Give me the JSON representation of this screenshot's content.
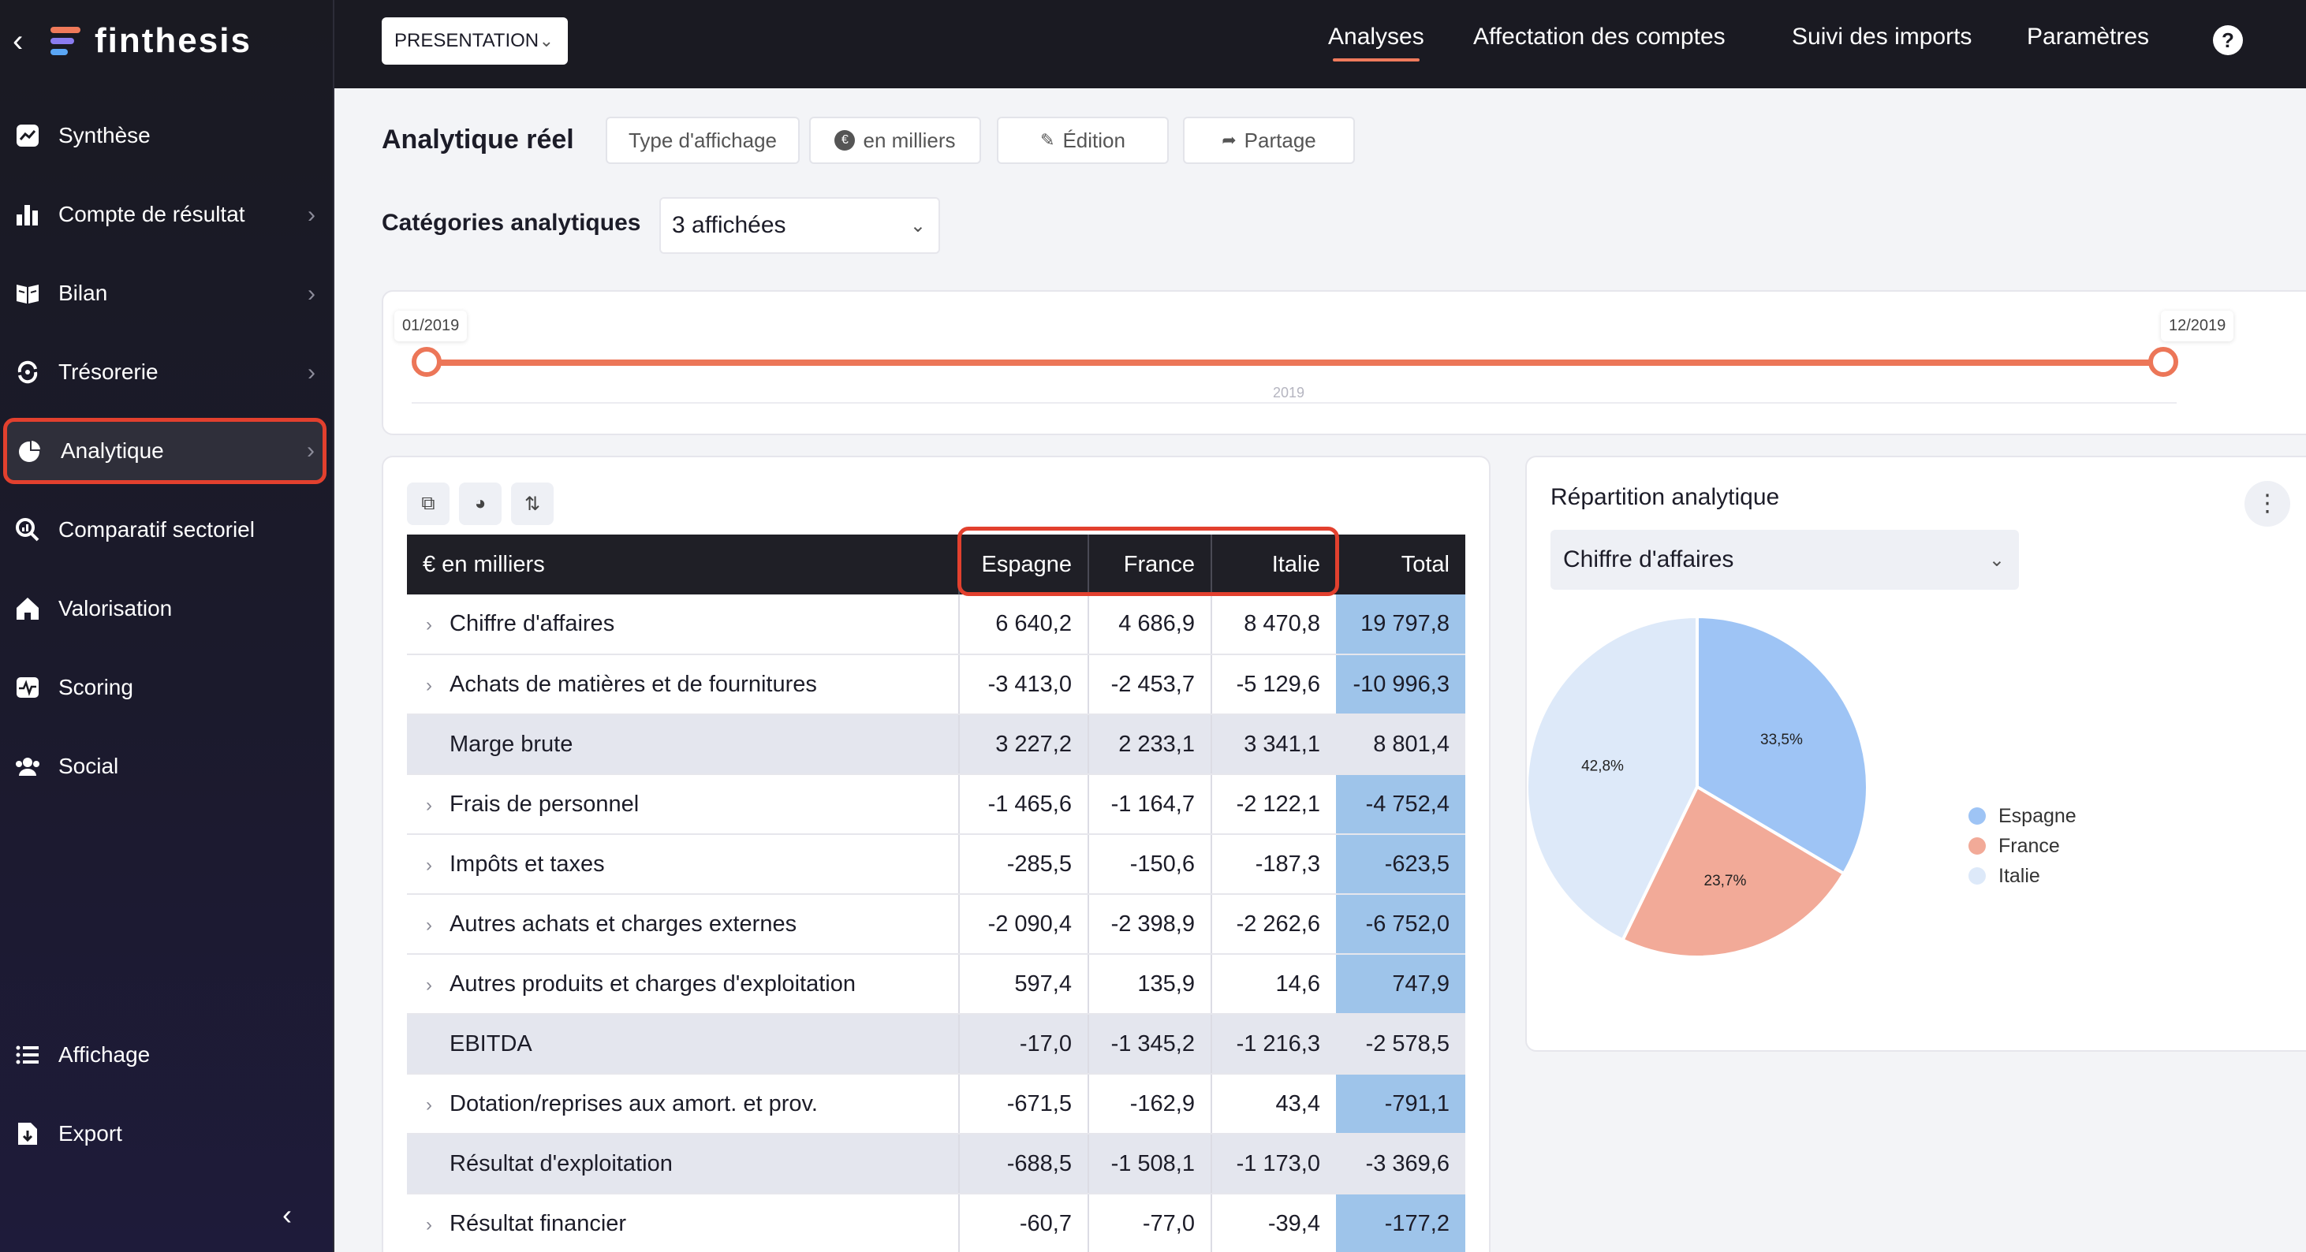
{
  "brand": {
    "name": "finthesis"
  },
  "sidebar": {
    "items": [
      {
        "label": "Synthèse",
        "icon": "trend-chart-icon",
        "has_chevron": false
      },
      {
        "label": "Compte de résultat",
        "icon": "bar-chart-icon",
        "has_chevron": true
      },
      {
        "label": "Bilan",
        "icon": "book-icon",
        "has_chevron": true
      },
      {
        "label": "Trésorerie",
        "icon": "cash-flow-icon",
        "has_chevron": true
      },
      {
        "label": "Analytique",
        "icon": "pie-chart-icon",
        "has_chevron": true,
        "active": true
      },
      {
        "label": "Comparatif sectoriel",
        "icon": "search-chart-icon",
        "has_chevron": false
      },
      {
        "label": "Valorisation",
        "icon": "home-icon",
        "has_chevron": false
      },
      {
        "label": "Scoring",
        "icon": "pulse-icon",
        "has_chevron": false
      },
      {
        "label": "Social",
        "icon": "users-icon",
        "has_chevron": false
      }
    ],
    "bottom_items": [
      {
        "label": "Affichage",
        "icon": "list-icon"
      },
      {
        "label": "Export",
        "icon": "export-icon"
      }
    ]
  },
  "topbar": {
    "company": "PRESENTATION",
    "tabs": [
      {
        "label": "Analyses",
        "active": true
      },
      {
        "label": "Affectation des comptes"
      },
      {
        "label": "Suivi des imports"
      },
      {
        "label": "Paramètres"
      }
    ],
    "help": "?"
  },
  "page": {
    "title": "Analytique réel",
    "buttons": {
      "display_type": "Type d'affichage",
      "unit": "en milliers",
      "edit": "Édition",
      "share": "Partage"
    },
    "categories": {
      "label": "Catégories analytiques",
      "value": "3 affichées"
    },
    "range": {
      "start": "01/2019",
      "end": "12/2019",
      "year": "2019"
    }
  },
  "table": {
    "header": [
      "€ en milliers",
      "Espagne",
      "France",
      "Italie",
      "Total"
    ],
    "rows": [
      {
        "label": "Chiffre d'affaires",
        "expandable": true,
        "subtotal": false,
        "values": [
          "6 640,2",
          "4 686,9",
          "8 470,8",
          "19 797,8"
        ]
      },
      {
        "label": "Achats de matières et de fournitures",
        "expandable": true,
        "subtotal": false,
        "values": [
          "-3 413,0",
          "-2 453,7",
          "-5 129,6",
          "-10 996,3"
        ]
      },
      {
        "label": "Marge brute",
        "expandable": false,
        "subtotal": true,
        "values": [
          "3 227,2",
          "2 233,1",
          "3 341,1",
          "8 801,4"
        ]
      },
      {
        "label": "Frais de personnel",
        "expandable": true,
        "subtotal": false,
        "values": [
          "-1 465,6",
          "-1 164,7",
          "-2 122,1",
          "-4 752,4"
        ]
      },
      {
        "label": "Impôts et taxes",
        "expandable": true,
        "subtotal": false,
        "values": [
          "-285,5",
          "-150,6",
          "-187,3",
          "-623,5"
        ]
      },
      {
        "label": "Autres achats et charges externes",
        "expandable": true,
        "subtotal": false,
        "values": [
          "-2 090,4",
          "-2 398,9",
          "-2 262,6",
          "-6 752,0"
        ]
      },
      {
        "label": "Autres produits et charges d'exploitation",
        "expandable": true,
        "subtotal": false,
        "values": [
          "597,4",
          "135,9",
          "14,6",
          "747,9"
        ]
      },
      {
        "label": "EBITDA",
        "expandable": false,
        "subtotal": true,
        "values": [
          "-17,0",
          "-1 345,2",
          "-1 216,3",
          "-2 578,5"
        ]
      },
      {
        "label": "Dotation/reprises aux amort. et prov.",
        "expandable": true,
        "subtotal": false,
        "values": [
          "-671,5",
          "-162,9",
          "43,4",
          "-791,1"
        ]
      },
      {
        "label": "Résultat d'exploitation",
        "expandable": false,
        "subtotal": true,
        "values": [
          "-688,5",
          "-1 508,1",
          "-1 173,0",
          "-3 369,6"
        ]
      },
      {
        "label": "Résultat financier",
        "expandable": true,
        "subtotal": false,
        "values": [
          "-60,7",
          "-77,0",
          "-39,4",
          "-177,2"
        ]
      }
    ]
  },
  "pie_panel": {
    "title": "Répartition analytique",
    "select": "Chiffre d'affaires"
  },
  "chart_data": {
    "type": "pie",
    "title": "",
    "labels": [
      "Espagne",
      "France",
      "Italie"
    ],
    "values": [
      33.5,
      23.7,
      42.8
    ],
    "value_labels": [
      "33,5%",
      "23,7%",
      "42,8%"
    ],
    "colors": [
      "#9ec4f5",
      "#f2aa98",
      "#dde9f9"
    ],
    "legend": "right"
  }
}
